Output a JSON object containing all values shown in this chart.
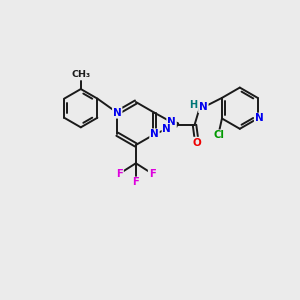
{
  "bg_color": "#ebebeb",
  "bond_color": "#1a1a1a",
  "atom_colors": {
    "N": "#0000ee",
    "O": "#ee0000",
    "F": "#dd00dd",
    "Cl": "#009900",
    "H": "#007777",
    "C": "#1a1a1a"
  },
  "figsize": [
    3.0,
    3.0
  ],
  "dpi": 100
}
